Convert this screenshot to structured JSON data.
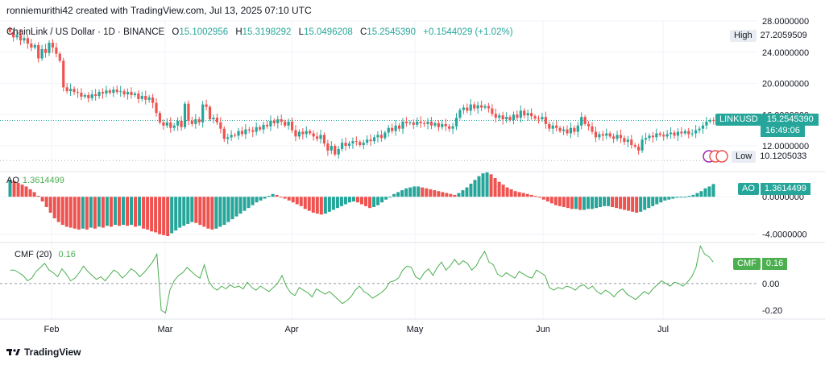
{
  "header": {
    "attribution": "ronniemurithi42 created with TradingView.com, Jul 13, 2025 07:10 UTC"
  },
  "legend": {
    "symbol": "ChainLink / US Dollar · 1D · BINANCE",
    "open_label": "O",
    "open": "15.1002956",
    "high_label": "H",
    "high": "15.3198292",
    "low_label": "L",
    "low": "15.0496208",
    "close_label": "C",
    "close": "15.2545390",
    "change": "+0.1544029 (+1.02%)"
  },
  "price_scale": {
    "high_label": "High",
    "high_value": "27.2059509",
    "ticker": "LINKUSD",
    "last_value": "15.2545390",
    "countdown": "16:49:06",
    "low_label": "Low",
    "low_value": "10.1205033"
  },
  "ao": {
    "name": "AO",
    "value": "1.3614499",
    "tag_label": "AO"
  },
  "cmf": {
    "name": "CMF (20)",
    "value": "0.16",
    "tag_label": "CMF",
    "tag_value": "0.16"
  },
  "footer": {
    "brand": "TradingView"
  },
  "colors": {
    "up": "#26a69a",
    "down": "#ef5350",
    "cmf_line": "#4caf50",
    "grid": "#f0f3fa"
  },
  "chart_data": [
    {
      "type": "candlestick",
      "title": "ChainLink / US Dollar · 1D · BINANCE",
      "x_tick_labels": [
        "Feb",
        "Mar",
        "Apr",
        "May",
        "Jun",
        "Jul"
      ],
      "y_tick_labels": [
        "28.0000000",
        "24.0000000",
        "20.0000000",
        "16.0000000",
        "12.0000000"
      ],
      "ylim": [
        8.8,
        28.0
      ],
      "grid": true,
      "last_close": 15.254539,
      "high": 27.2059509,
      "low": 10.1205033,
      "close": [
        26.6,
        25.9,
        26.2,
        25.5,
        25.8,
        25.1,
        24.6,
        24.9,
        23.2,
        24.4,
        23.9,
        25.2,
        24.6,
        23.8,
        22.9,
        19.5,
        19.0,
        19.3,
        18.9,
        18.8,
        18.3,
        18.5,
        18.1,
        18.6,
        18.4,
        18.9,
        18.7,
        19.1,
        18.8,
        19.2,
        18.9,
        19.0,
        18.6,
        18.9,
        18.5,
        18.7,
        18.0,
        18.4,
        17.9,
        18.2,
        17.5,
        16.2,
        15.0,
        14.6,
        15.0,
        14.3,
        14.6,
        15.2,
        14.4,
        17.4,
        15.2,
        14.8,
        15.4,
        15.0,
        17.3,
        17.0,
        15.4,
        15.6,
        15.0,
        14.2,
        12.9,
        13.1,
        13.4,
        13.3,
        13.9,
        13.5,
        14.1,
        14.0,
        13.8,
        14.4,
        14.1,
        14.7,
        14.5,
        15.2,
        14.9,
        15.4,
        15.1,
        14.6,
        15.1,
        14.0,
        13.2,
        13.8,
        13.5,
        13.9,
        13.6,
        13.2,
        12.9,
        13.4,
        12.3,
        11.4,
        12.0,
        10.9,
        11.6,
        12.4,
        12.0,
        12.3,
        12.6,
        12.5,
        12.1,
        12.4,
        12.8,
        12.6,
        13.1,
        13.4,
        13.0,
        13.7,
        14.3,
        13.9,
        14.6,
        14.2,
        15.1,
        14.9,
        15.0,
        14.7,
        15.1,
        14.9,
        14.8,
        15.1,
        14.6,
        14.9,
        14.4,
        14.8,
        14.5,
        14.2,
        14.5,
        15.6,
        16.6,
        16.9,
        16.5,
        17.3,
        16.8,
        17.2,
        16.9,
        17.1,
        16.8,
        16.1,
        15.6,
        15.9,
        15.4,
        15.7,
        15.3,
        16.0,
        15.6,
        16.5,
        15.9,
        16.2,
        15.8,
        15.5,
        15.4,
        15.7,
        14.8,
        14.2,
        14.6,
        14.3,
        13.9,
        14.1,
        13.6,
        14.3,
        13.8,
        14.6,
        15.7,
        14.8,
        14.5,
        13.8,
        13.1,
        13.5,
        13.3,
        13.6,
        13.2,
        12.9,
        13.4,
        13.0,
        12.5,
        12.8,
        12.1,
        11.9,
        11.4,
        12.8,
        13.0,
        13.3,
        13.1,
        13.6,
        13.4,
        13.2,
        13.5,
        13.7,
        13.3,
        13.8,
        13.6,
        13.9,
        13.5,
        13.6,
        14.0,
        14.2,
        14.6,
        15.1,
        15.3,
        15.25
      ]
    },
    {
      "type": "bar",
      "title": "AO",
      "y_tick_labels": [
        "0.0000000",
        "-4.0000000"
      ],
      "ylim": [
        -4.8,
        2.6
      ],
      "last_value": 1.3614499,
      "values": [
        1.8,
        1.7,
        1.5,
        1.3,
        1.1,
        0.8,
        0.5,
        0.1,
        -0.5,
        -1.1,
        -1.7,
        -2.3,
        -2.7,
        -3.0,
        -3.2,
        -3.3,
        -3.4,
        -3.5,
        -3.4,
        -3.5,
        -3.3,
        -3.4,
        -3.2,
        -3.3,
        -3.1,
        -3.2,
        -3.0,
        -3.1,
        -3.0,
        -3.1,
        -3.0,
        -3.2,
        -3.1,
        -3.4,
        -3.5,
        -3.7,
        -3.8,
        -4.0,
        -4.1,
        -4.2,
        -3.9,
        -3.6,
        -3.3,
        -3.1,
        -2.9,
        -2.7,
        -2.8,
        -3.0,
        -3.2,
        -3.4,
        -3.5,
        -3.4,
        -3.2,
        -3.0,
        -2.7,
        -2.4,
        -2.1,
        -1.8,
        -1.5,
        -1.2,
        -0.9,
        -0.6,
        -0.4,
        -0.2,
        0.1,
        0.3,
        0.2,
        0.0,
        -0.2,
        -0.4,
        -0.6,
        -0.8,
        -1.0,
        -1.3,
        -1.5,
        -1.7,
        -1.8,
        -1.9,
        -1.8,
        -1.6,
        -1.4,
        -1.2,
        -1.0,
        -0.8,
        -0.6,
        -0.5,
        -0.6,
        -0.8,
        -1.0,
        -1.2,
        -1.1,
        -0.9,
        -0.6,
        -0.3,
        0.0,
        0.3,
        0.5,
        0.7,
        0.9,
        1.0,
        1.1,
        1.1,
        1.0,
        0.9,
        0.8,
        0.7,
        0.6,
        0.5,
        0.4,
        0.3,
        0.2,
        0.4,
        0.7,
        1.0,
        1.4,
        1.8,
        2.2,
        2.5,
        2.6,
        2.4,
        2.0,
        1.6,
        1.3,
        1.0,
        0.8,
        0.6,
        0.5,
        0.4,
        0.3,
        0.2,
        0.1,
        -0.1,
        -0.3,
        -0.5,
        -0.7,
        -0.9,
        -1.0,
        -1.1,
        -1.2,
        -1.3,
        -1.3,
        -1.4,
        -1.4,
        -1.3,
        -1.3,
        -1.2,
        -1.1,
        -1.0,
        -1.0,
        -1.1,
        -1.2,
        -1.3,
        -1.4,
        -1.5,
        -1.6,
        -1.7,
        -1.6,
        -1.4,
        -1.2,
        -1.0,
        -0.8,
        -0.6,
        -0.4,
        -0.3,
        -0.2,
        -0.1,
        0.0,
        0.0,
        0.1,
        0.2,
        0.4,
        0.6,
        0.9,
        1.1,
        1.36
      ]
    },
    {
      "type": "line",
      "title": "CMF (20)",
      "y_tick_labels": [
        "0.00",
        "-0.20"
      ],
      "ylim": [
        -0.26,
        0.3
      ],
      "zero_line": "dashed",
      "last_value": 0.16,
      "values": [
        0.1,
        0.1,
        0.08,
        0.06,
        0.02,
        0.04,
        0.09,
        0.12,
        0.15,
        0.1,
        0.08,
        0.05,
        0.11,
        0.07,
        0.02,
        0.04,
        0.08,
        0.13,
        0.09,
        0.06,
        0.03,
        0.05,
        0.02,
        0.06,
        0.1,
        0.08,
        0.04,
        0.07,
        0.11,
        0.09,
        0.05,
        0.08,
        0.12,
        0.16,
        0.22,
        -0.2,
        -0.22,
        -0.05,
        0.02,
        0.06,
        0.08,
        0.12,
        0.09,
        0.06,
        0.04,
        0.14,
        0.02,
        -0.03,
        -0.05,
        -0.02,
        -0.04,
        -0.01,
        -0.03,
        -0.02,
        -0.04,
        0.01,
        -0.03,
        -0.05,
        -0.02,
        -0.04,
        -0.06,
        -0.03,
        0.0,
        0.06,
        -0.02,
        -0.07,
        -0.09,
        -0.03,
        -0.05,
        -0.07,
        -0.1,
        -0.04,
        -0.06,
        -0.08,
        -0.06,
        -0.09,
        -0.12,
        -0.15,
        -0.13,
        -0.1,
        -0.05,
        -0.02,
        -0.06,
        -0.08,
        -0.11,
        -0.09,
        -0.07,
        -0.04,
        0.01,
        0.02,
        0.04,
        0.1,
        0.13,
        0.12,
        0.05,
        0.03,
        0.08,
        0.11,
        0.06,
        0.12,
        0.16,
        0.1,
        0.13,
        0.18,
        0.14,
        0.17,
        0.15,
        0.1,
        0.13,
        0.19,
        0.24,
        0.16,
        0.14,
        0.07,
        0.05,
        0.08,
        0.06,
        0.04,
        0.09,
        0.07,
        0.05,
        0.04,
        0.1,
        0.08,
        0.06,
        -0.03,
        -0.05,
        -0.03,
        -0.04,
        -0.02,
        -0.03,
        -0.05,
        -0.02,
        -0.01,
        -0.04,
        -0.02,
        -0.06,
        -0.08,
        -0.05,
        -0.07,
        -0.1,
        -0.06,
        -0.04,
        -0.08,
        -0.1,
        -0.12,
        -0.09,
        -0.06,
        -0.08,
        -0.04,
        -0.01,
        0.02,
        0.0,
        -0.02,
        0.01,
        0.0,
        -0.02,
        0.01,
        0.05,
        0.12,
        0.28,
        0.22,
        0.2,
        0.16
      ]
    }
  ]
}
